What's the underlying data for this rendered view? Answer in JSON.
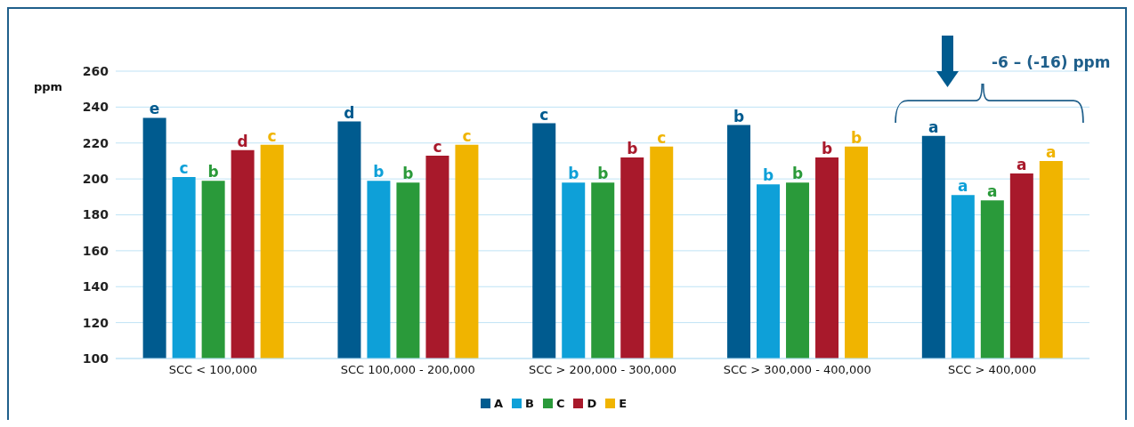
{
  "chart_data": {
    "type": "bar",
    "ylabel": "ppm",
    "categories": [
      "SCC < 100,000",
      "SCC 100,000 - 200,000",
      "SCC > 200,000 - 300,000",
      "SCC > 300,000 - 400,000",
      "SCC > 400,000"
    ],
    "series": [
      {
        "name": "A",
        "color": "#005b8f",
        "values": [
          234,
          232,
          231,
          230,
          224
        ],
        "value_labels": [
          "e",
          "d",
          "c",
          "b",
          "a"
        ]
      },
      {
        "name": "B",
        "color": "#0ea0d8",
        "values": [
          201,
          199,
          198,
          197,
          191
        ],
        "value_labels": [
          "c",
          "b",
          "b",
          "b",
          "a"
        ]
      },
      {
        "name": "C",
        "color": "#2a9a3a",
        "values": [
          199,
          198,
          198,
          198,
          188
        ],
        "value_labels": [
          "b",
          "b",
          "b",
          "b",
          "a"
        ]
      },
      {
        "name": "D",
        "color": "#a8192b",
        "values": [
          216,
          213,
          212,
          212,
          203
        ],
        "value_labels": [
          "d",
          "c",
          "b",
          "b",
          "a"
        ]
      },
      {
        "name": "E",
        "color": "#f0b400",
        "values": [
          219,
          219,
          218,
          218,
          210
        ],
        "value_labels": [
          "c",
          "c",
          "c",
          "b",
          "a"
        ]
      }
    ],
    "ylim": [
      100,
      260
    ],
    "yticks": [
      100,
      120,
      140,
      160,
      180,
      200,
      220,
      240,
      260
    ],
    "grid": "y",
    "legend": "bottom",
    "annotations": [
      "-6 – (-16) ppm"
    ]
  }
}
